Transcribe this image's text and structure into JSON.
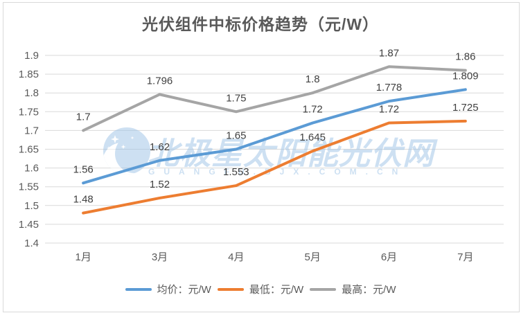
{
  "title": "光伏组件中标价格趋势（元/W）",
  "watermark": {
    "cn_text": "北极星太阳能光伏网",
    "latin_text": "GUANGFU.BJX.COM.CN",
    "color": "#9dc3e6"
  },
  "chart_data": {
    "type": "line",
    "title": "光伏组件中标价格趋势（元/W）",
    "categories": [
      "1月",
      "3月",
      "4月",
      "5月",
      "6月",
      "7月"
    ],
    "series": [
      {
        "key": "avg",
        "name": "均价：元/W",
        "color": "#5B9BD5",
        "values": [
          1.56,
          1.62,
          1.65,
          1.72,
          1.778,
          1.809
        ]
      },
      {
        "key": "min",
        "name": "最低：元/W",
        "color": "#ED7D31",
        "values": [
          1.48,
          1.52,
          1.553,
          1.645,
          1.72,
          1.725
        ]
      },
      {
        "key": "max",
        "name": "最高：元/W",
        "color": "#A5A5A5",
        "values": [
          1.7,
          1.796,
          1.75,
          1.8,
          1.87,
          1.86
        ]
      }
    ],
    "xlabel": "",
    "ylabel": "",
    "ylim": [
      1.4,
      1.9
    ],
    "ytick_step": 0.05,
    "grid": true,
    "gridline_color": "#d9d9d9",
    "legend_position": "bottom",
    "data_labels": true,
    "text_color": "#595959"
  }
}
